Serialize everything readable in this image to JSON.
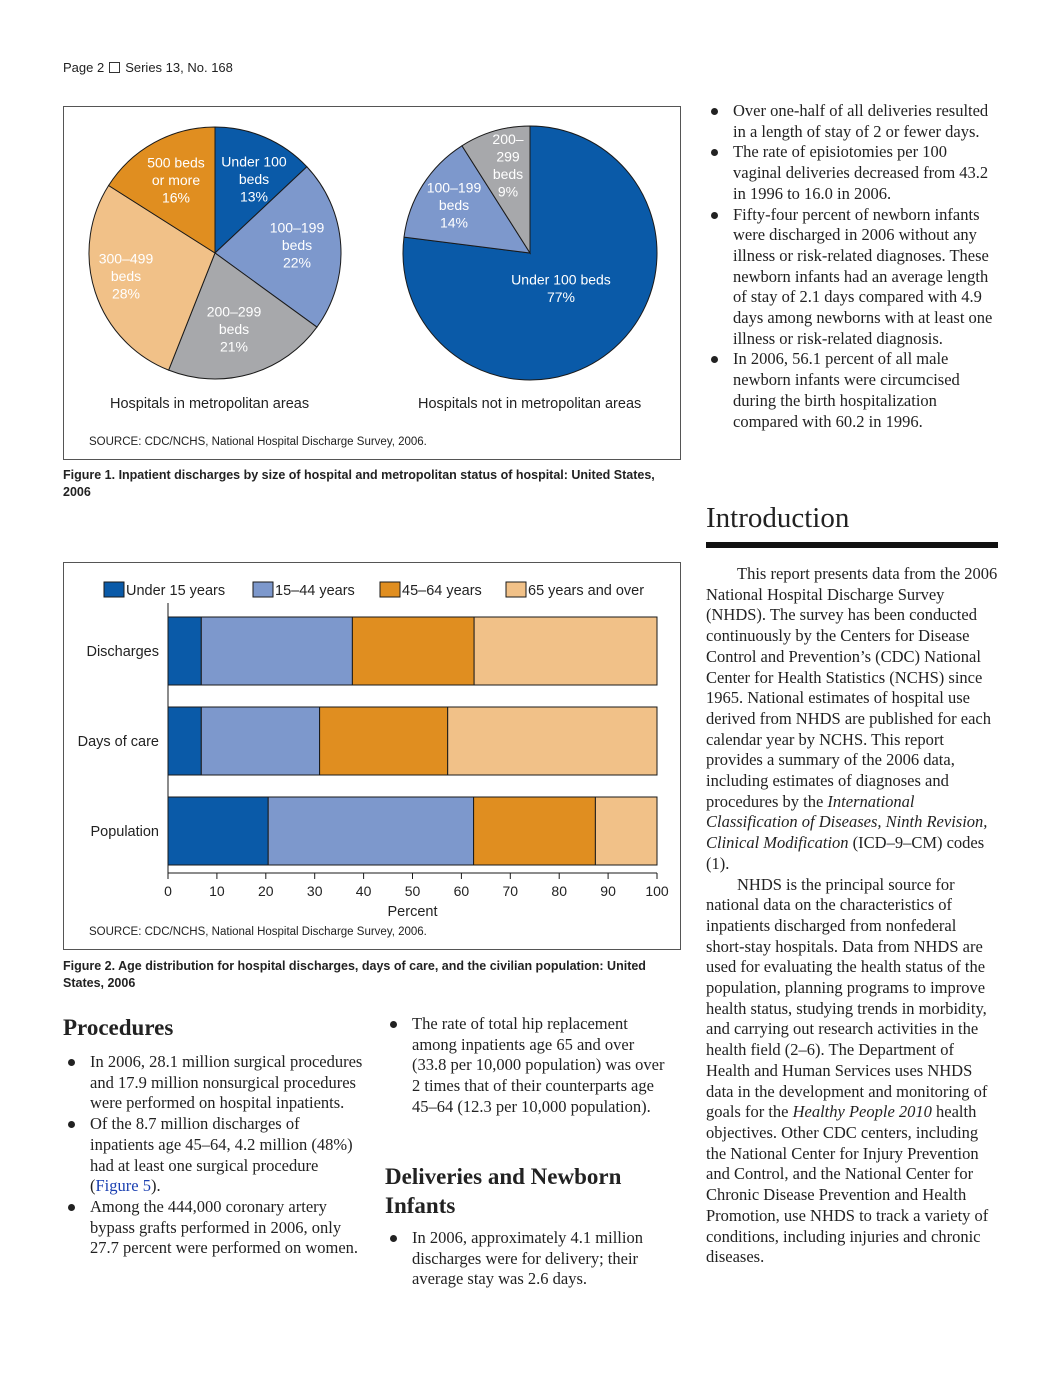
{
  "header": {
    "page": "Page 2",
    "series": "Series 13, No. 168"
  },
  "colors": {
    "under_100": "#0a5aa8",
    "b100_199": "#7d98cc",
    "b200_299": "#a7a8ab",
    "b300_499": "#f1c188",
    "b500_plus": "#e08e20"
  },
  "figure1": {
    "caption": "Figure 1. Inpatient discharges by size of hospital and metropolitan status of hospital: United States, 2006",
    "source": "SOURCE: CDC/NCHS, National Hospital Discharge Survey, 2006.",
    "metro_label": "Hospitals in metropolitan areas",
    "nonmetro_label": "Hospitals not in metropolitan areas"
  },
  "figure2": {
    "caption": "Figure 2. Age distribution for hospital discharges, days of care, and the civilian population: United States, 2006",
    "source": "SOURCE: CDC/NCHS, National Hospital Discharge Survey, 2006."
  },
  "chart_data": [
    {
      "type": "pie",
      "title": "Hospitals in metropolitan areas",
      "slices": [
        {
          "label": [
            "Under 100",
            "beds",
            "13%"
          ],
          "value": 13,
          "color": "#0a5aa8"
        },
        {
          "label": [
            "100–199",
            "beds",
            "22%"
          ],
          "value": 22,
          "color": "#7d98cc"
        },
        {
          "label": [
            "200–299",
            "beds",
            "21%"
          ],
          "value": 21,
          "color": "#a7a8ab"
        },
        {
          "label": [
            "300–499",
            "beds",
            "28%"
          ],
          "value": 28,
          "color": "#f1c188"
        },
        {
          "label": [
            "500 beds",
            "or more",
            "16%"
          ],
          "value": 16,
          "color": "#e08e20"
        }
      ]
    },
    {
      "type": "pie",
      "title": "Hospitals not in metropolitan areas",
      "slices": [
        {
          "label": [
            "Under 100 beds",
            "77%"
          ],
          "value": 77,
          "color": "#0a5aa8"
        },
        {
          "label": [
            "100–199",
            "beds",
            "14%"
          ],
          "value": 14,
          "color": "#7d98cc"
        },
        {
          "label": [
            "200–",
            "299",
            "beds",
            "9%"
          ],
          "value": 9,
          "color": "#a7a8ab"
        }
      ]
    },
    {
      "type": "bar",
      "orientation": "horizontal",
      "stacked": true,
      "categories": [
        "Discharges",
        "Days of care",
        "Population"
      ],
      "series": [
        {
          "name": "Under 15 years",
          "values": [
            6.8,
            6.8,
            20.5
          ],
          "color": "#0a5aa8"
        },
        {
          "name": "15–44 years",
          "values": [
            30.9,
            24.2,
            42.0
          ],
          "color": "#7d98cc"
        },
        {
          "name": "45–64 years",
          "values": [
            24.9,
            26.2,
            24.9
          ],
          "color": "#e08e20"
        },
        {
          "name": "65 years and over",
          "values": [
            37.4,
            42.8,
            12.6
          ],
          "color": "#f1c188"
        }
      ],
      "xlabel": "Percent",
      "xlim": [
        0,
        100
      ],
      "xticks": [
        0,
        10,
        20,
        30,
        40,
        50,
        60,
        70,
        80,
        90,
        100
      ],
      "legend": "top"
    }
  ],
  "procedures": {
    "heading": "Procedures",
    "bullets": [
      "In 2006, 28.1 million surgical procedures and 17.9 million nonsurgical procedures were performed on hospital inpatients.",
      "Of the 8.7 million discharges of inpatients age 45–64, 4.2 million (48%) had at least one surgical procedure (",
      "Among the 444,000 coronary artery bypass grafts performed in 2006, only 27.7 percent were performed on women."
    ],
    "figure5_link": "Figure 5",
    "figure5_after": ")."
  },
  "middle": {
    "hip_bullet": "The rate of total hip replacement among inpatients age 65 and over (33.8 per 10,000 population) was over 2 times that of their counterparts age 45–64 (12.3 per 10,000 population).",
    "heading": "Deliveries and Newborn Infants",
    "delivery_bullet": "In 2006, approximately 4.1 million discharges were for delivery; their average stay was 2.6 days."
  },
  "right": {
    "bullets": [
      "Over one-half of all deliveries resulted in a length of stay of 2 or fewer days.",
      "The rate of episiotomies per 100 vaginal deliveries decreased from 43.2 in 1996 to 16.0 in 2006.",
      "Fifty-four percent of newborn infants were discharged in 2006 without any illness or risk-related diagnoses. These newborn infants had an average length of stay of 2.1 days compared with 4.9 days among newborns with at least one illness or risk-related diagnosis.",
      "In 2006, 56.1 percent of all male newborn infants were circumcised during the birth hospitalization compared with 60.2 in 1996."
    ],
    "intro_heading": "Introduction",
    "p1_a": "This report presents data from the 2006 National Hospital Discharge Survey (NHDS). The survey has been conducted continuously by the Centers for Disease Control and Prevention’s (CDC) National Center for Health Statistics (NCHS) since 1965. National estimates of hospital use derived from NHDS are published for each calendar year by NCHS. This report provides a summary of the 2006 data, including estimates of diagnoses and procedures by the ",
    "p1_italic": "International Classification of Diseases, Ninth Revision, Clinical Modification",
    "p1_b": " (ICD–9–CM) codes (1).",
    "p2_a": "NHDS is the principal source for national data on the characteristics of inpatients discharged from nonfederal short-stay hospitals. Data from NHDS are used for evaluating the health status of the population, planning programs to improve health status, studying trends in morbidity, and carrying out research activities in the health field (2–6). The Department of Health and Human Services uses NHDS data in the development and monitoring of goals for the ",
    "p2_italic": "Healthy People 2010",
    "p2_b": " health objectives. Other CDC centers, including the National Center for Injury Prevention and Control, and the National Center for Chronic Disease Prevention and Health Promotion, use NHDS to track a variety of conditions, including injuries and chronic diseases."
  }
}
